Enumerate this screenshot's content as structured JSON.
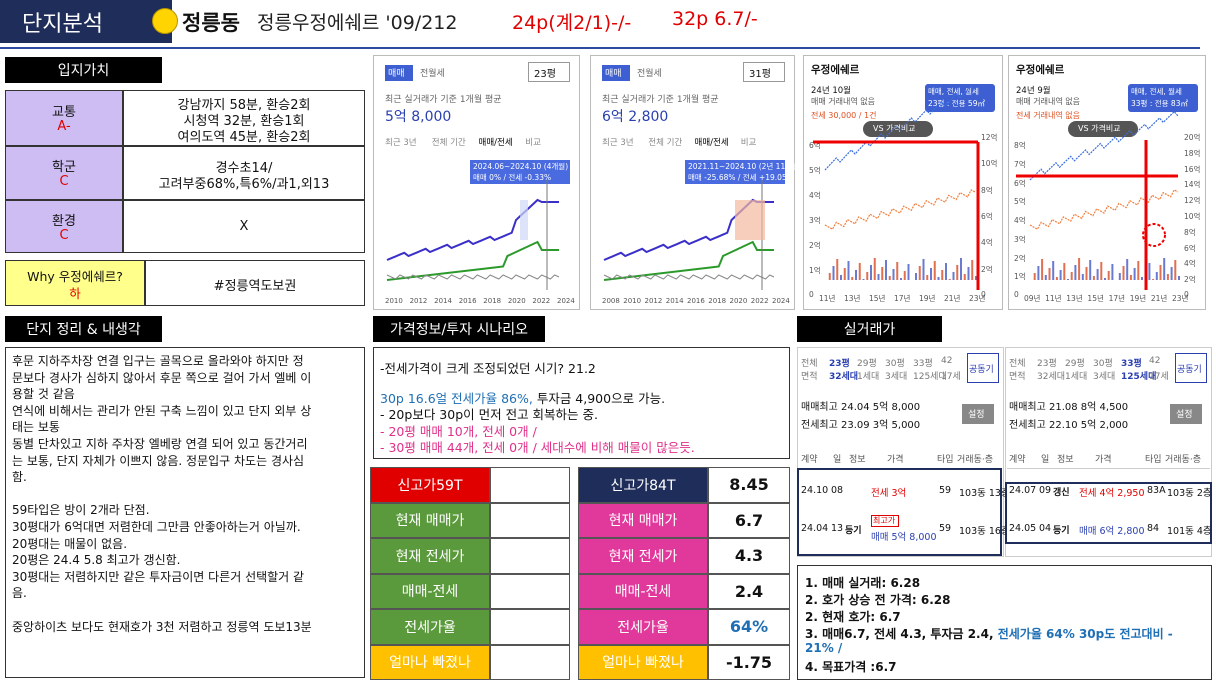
{
  "header": {
    "label": "단지분석",
    "title": "정릉동",
    "subtitle": "정릉우정에쉐르 '09/212",
    "price1": "24p(계2/1)-/-",
    "price2": "32p 6.7/-"
  },
  "location": {
    "heading": "입지가치",
    "rows": [
      {
        "name": "교통",
        "grade": "A-",
        "lines": [
          "강남까지 58분, 환승2회",
          "시청역 32분, 환승1회",
          "여의도역 45분, 환승2회"
        ]
      },
      {
        "name": "학군",
        "grade": "C",
        "lines": [
          "경수초14/",
          "고려부중68%,특6%/과1,외13"
        ]
      },
      {
        "name": "환경",
        "grade": "C",
        "lines": [
          "X"
        ]
      }
    ],
    "why": {
      "label": "Why 우정에쉐르?",
      "grade": "하",
      "text": "#정릉역도보권"
    }
  },
  "summary": {
    "heading": "단지 정리 & 내생각",
    "lines": [
      "후문 지하주차장 연결 입구는 골목으로 올라와야 하지만 정",
      "문보다 경사가 심하지 않아서 후문 쪽으로 걸어 가서 엘베 이",
      "용할 것 같음",
      "연식에 비해서는 관리가 안된 구축 느낌이 있고 단지 외부 상",
      "태는 보통",
      "동별 단차있고 지하 주차장 엘베랑 연결 되어 있고 동간거리",
      "는 보통, 단지 자체가 이쁘지 않음. 정문입구 차도는 경사심",
      "함.",
      null,
      "59타입은 방이 2개라 단점.",
      "30평대가 6억대면 저렴한데 그만큼 안좋아하는거 아닐까.",
      "20평대는 매물이 없음.",
      "20평은 24.4 5.8 최고가 갱신함.",
      "30평대는 저렴하지만 같은 투자금이면 다른거 선택할거 같",
      "음.",
      null,
      "중앙하이츠 보다도 현재호가 3천 저렴하고 정릉역 도보13분"
    ]
  },
  "charts": [
    {
      "tabs": [
        "매매",
        "전월세"
      ],
      "size": "23평",
      "caption": "최근 실거래가 기준 1개월 평균",
      "price": "5억 8,000",
      "periods": [
        "최근 3년",
        "전체 기간",
        "매매/전세",
        "비교"
      ],
      "tooltip": [
        "2024.06~2024.10 (4개월)",
        "매매 0% / 전세 -0.33%"
      ],
      "x": [
        "2010",
        "2012",
        "2014",
        "2016",
        "2018",
        "2020",
        "2022",
        "2024"
      ]
    },
    {
      "tabs": [
        "매매",
        "전월세"
      ],
      "size": "31평",
      "caption": "최근 실거래가 기준 1개월 평균",
      "price": "6억 2,800",
      "periods": [
        "최근 3년",
        "전체 기간",
        "매매/전세",
        "비교"
      ],
      "tooltip": [
        "2021.11~2024.10 (2년 11개월)",
        "매매 -25.68% / 전세 +19.05%"
      ],
      "x": [
        "2008",
        "2010",
        "2012",
        "2014",
        "2016",
        "2018",
        "2020",
        "2022",
        "2024"
      ]
    },
    {
      "title": "우정에쉐르",
      "date": "24년 10월",
      "note": "매매 거래내역 없음",
      "rent": "전세 30,000 / 1건",
      "badge": [
        "매매, 전세, 월세",
        "23평 : 전용 59㎡"
      ],
      "button": "VS 가격비교",
      "yl": [
        "6억",
        "5억",
        "4억",
        "3억",
        "2억",
        "1억",
        "0"
      ],
      "yr": [
        "12억",
        "10억",
        "8억",
        "6억",
        "4억",
        "2억",
        "0"
      ],
      "x": [
        "11년",
        "13년",
        "15년",
        "17년",
        "19년",
        "21년",
        "23년"
      ]
    },
    {
      "title": "우정에쉐르",
      "date": "24년 9월",
      "note": "매매 거래내역 없음",
      "rent": "전세 거래내역 없음",
      "badge": [
        "매매, 전세, 월세",
        "33평 : 전용 83㎡"
      ],
      "button": "VS 가격비교",
      "yl": [
        "8억",
        "7억",
        "6억",
        "5억",
        "4억",
        "3억",
        "2억",
        "1억",
        "0"
      ],
      "yr": [
        "20억",
        "18억",
        "16억",
        "14억",
        "12억",
        "10억",
        "8억",
        "6억",
        "4억",
        "2억",
        "0"
      ],
      "x": [
        "09년",
        "11년",
        "13년",
        "15년",
        "17년",
        "19년",
        "21년",
        "23년"
      ]
    }
  ],
  "scenario": {
    "heading": "가격정보/투자 시나리오",
    "line1": "-전세가격이 크게 조정되었던 시기? 21.2",
    "line2a": "30p 16.6얼 전세가율 86%,",
    "line2b": " 투자금 4,900으로 가능.",
    "line3": "- 20p보다 30p이 먼저 전고 회복하는 중.",
    "line4": "-   20평 매매 10개, 전세 0개 /",
    "line5": "-   30평 매매 44개, 전세 0개 / 세대수에 비해 매물이 많은듯."
  },
  "metrics": {
    "left": [
      "신고가59T",
      "현재 매매가",
      "현재 전세가",
      "매매-전세",
      "전세가율",
      "얼마나 빠졌나"
    ],
    "right": [
      {
        "label": "신고가84T",
        "value": "8.45"
      },
      {
        "label": "현재 매매가",
        "value": "6.7"
      },
      {
        "label": "현재 전세가",
        "value": "4.3"
      },
      {
        "label": "매매-전세",
        "value": "2.4"
      },
      {
        "label": "전세가율",
        "value": "64%"
      },
      {
        "label": "얼마나 빠졌나",
        "value": "-1.75"
      }
    ]
  },
  "trades": {
    "heading": "실거래가",
    "panels": [
      {
        "sizes": [
          [
            "전체",
            "면적"
          ],
          [
            "23평",
            "32세대"
          ],
          [
            "29평",
            "1세대"
          ],
          [
            "30평",
            "3세대"
          ],
          [
            "33평",
            "125세대"
          ],
          [
            "42",
            "17세"
          ]
        ],
        "button": "공동기",
        "high1": "매매최고 24.04 5억 8,000",
        "high2": "전세최고 23.09 3억 5,000",
        "setting": "설정",
        "cols": [
          "계약",
          "일",
          "정보",
          "가격",
          "타입",
          "거래동·층"
        ],
        "rows": [
          {
            "date": "24.10",
            "day": "08",
            "price": "전세 3억",
            "type": "59",
            "unit": "103동 13층"
          },
          {
            "date": "24.04",
            "day": "13",
            "info": "등기",
            "tag": "최고가",
            "price": "매매 5억 8,000",
            "type": "59",
            "unit": "103동 16층"
          }
        ]
      },
      {
        "sizes": [
          [
            "전체",
            "면적"
          ],
          [
            "23평",
            "32세대"
          ],
          [
            "29평",
            "1세대"
          ],
          [
            "30평",
            "3세대"
          ],
          [
            "33평",
            "125세대"
          ],
          [
            "42",
            "17세"
          ]
        ],
        "button": "공동기",
        "high1": "매매최고 21.08 8억 4,500",
        "high2": "전세최고 22.10 5억 2,000",
        "setting": "설정",
        "cols": [
          "계약",
          "일",
          "정보",
          "가격",
          "타입",
          "거래동·층"
        ],
        "rows": [
          {
            "date": "24.07",
            "day": "09",
            "info": "갱신",
            "price": "전세 4억 2,950",
            "type": "83A",
            "unit": "103동 2층"
          },
          {
            "date": "24.05",
            "day": "04",
            "info": "등기",
            "price": "매매 6억 2,800",
            "type": "84",
            "unit": "101동 4층"
          }
        ]
      }
    ],
    "notes": [
      "1. 매매 실거래: 6.28",
      "2. 호가 상승 전 가격: 6.28",
      "2. 현재 호가: 6.7"
    ],
    "note3a": "3. 매매6.7, 전세 4.3, 투자금 2.4, ",
    "note3b": "전세가율 64% 30p도 전고대비 -",
    "note3c": "21%  /",
    "note4": "4. 목표가격 :6.7"
  }
}
